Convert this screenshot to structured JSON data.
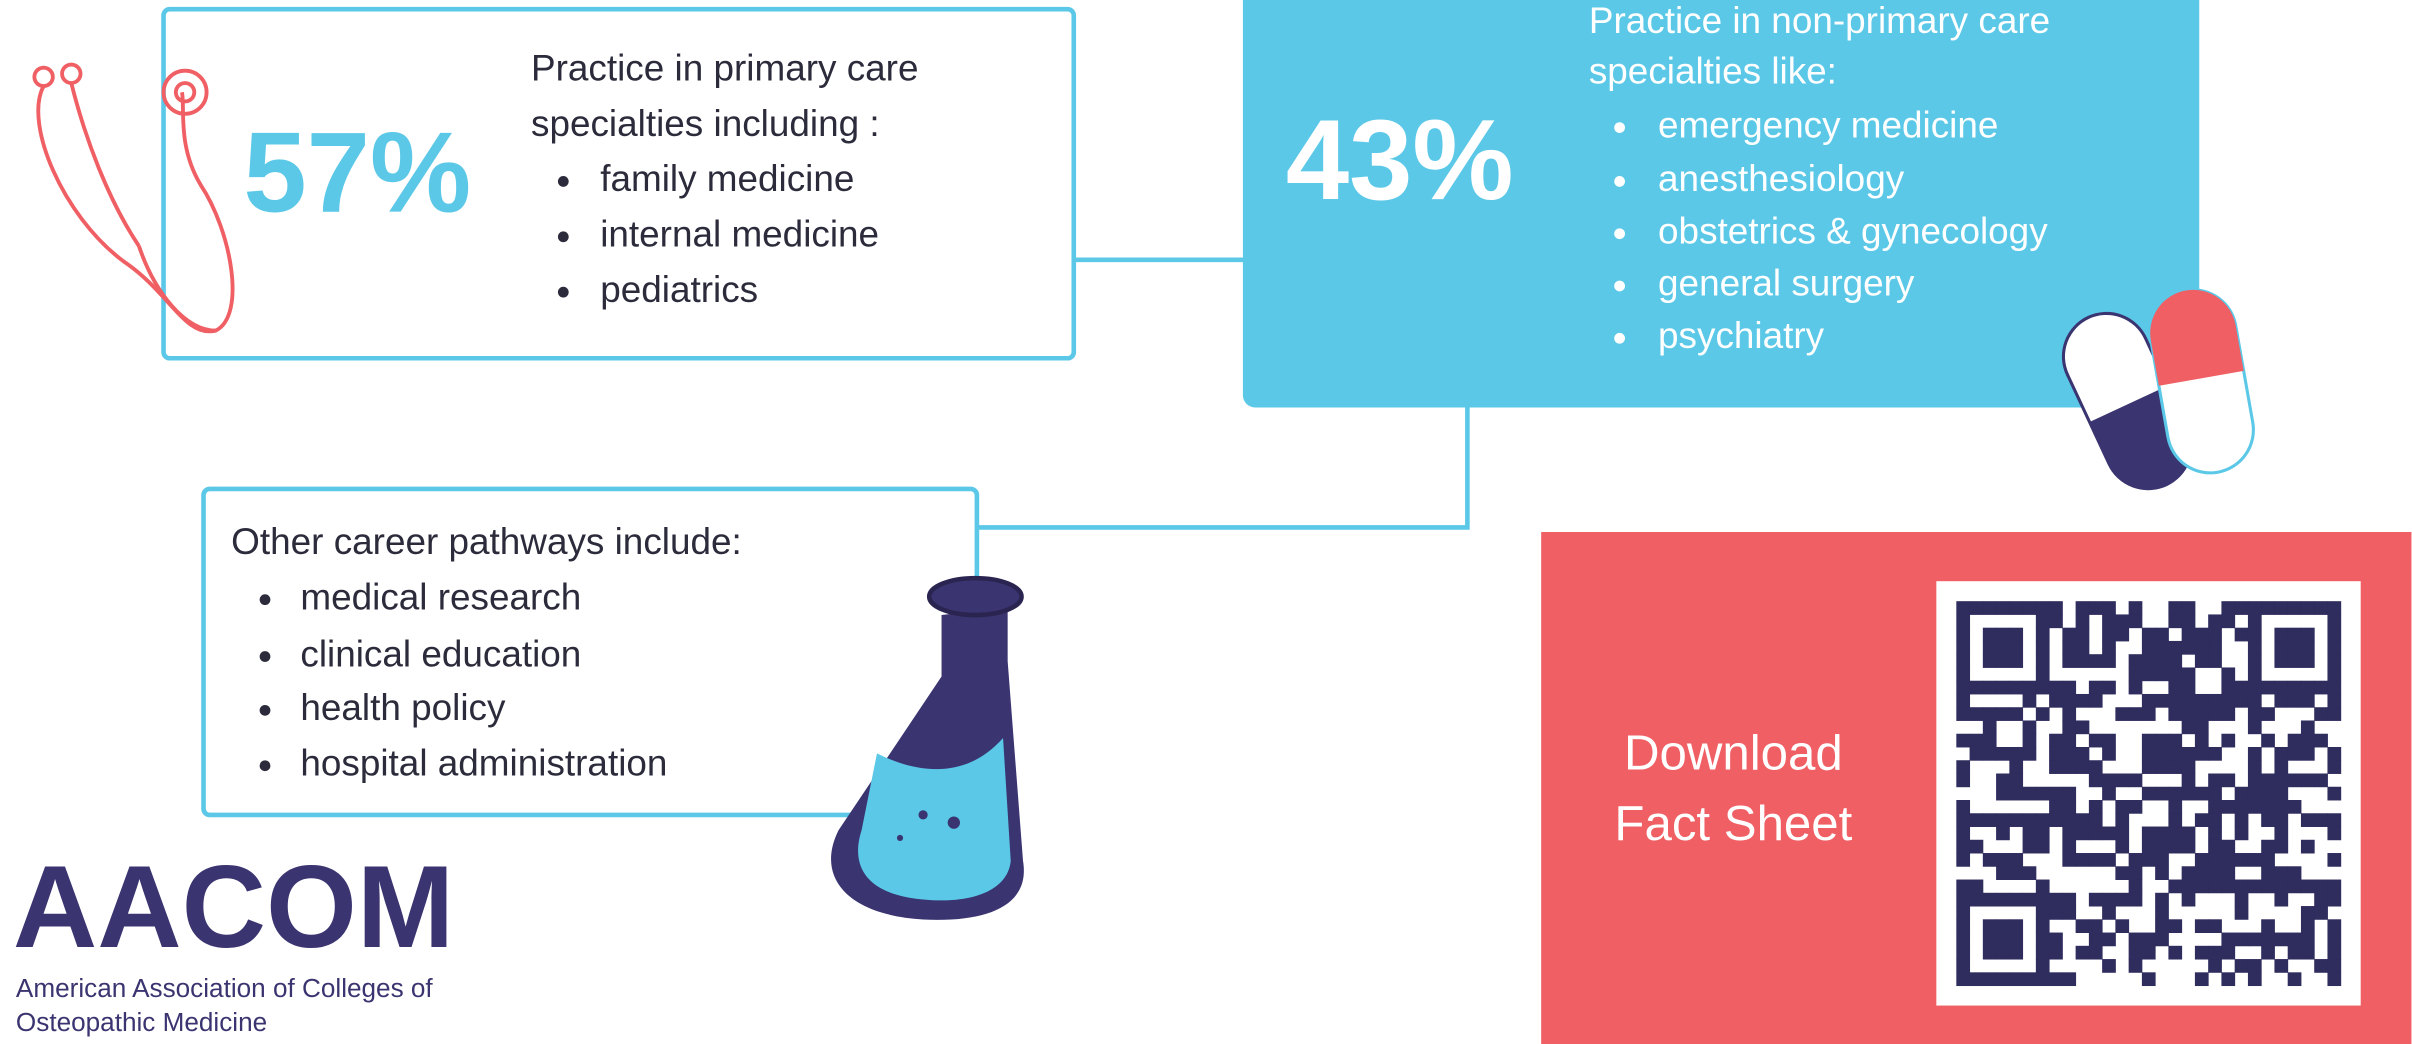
{
  "primary": {
    "percent": "57%",
    "heading": [
      "Practice in primary care",
      "specialties including :"
    ],
    "items": [
      "family medicine",
      "internal medicine",
      "pediatrics"
    ]
  },
  "non_primary": {
    "percent": "43%",
    "heading": [
      "Practice in non-primary care",
      "specialties like:"
    ],
    "items": [
      "emergency medicine",
      "anesthesiology",
      "obstetrics & gynecology",
      "general surgery",
      "psychiatry"
    ]
  },
  "other": {
    "heading": "Other career pathways include:",
    "items": [
      "medical research",
      "clinical education",
      "health policy",
      "hospital administration"
    ]
  },
  "download": {
    "lines": [
      "Download",
      "Fact Sheet"
    ]
  },
  "logo": {
    "name": "AACOM",
    "full_name": [
      "American Association of Colleges of",
      "Osteopathic Medicine"
    ]
  }
}
